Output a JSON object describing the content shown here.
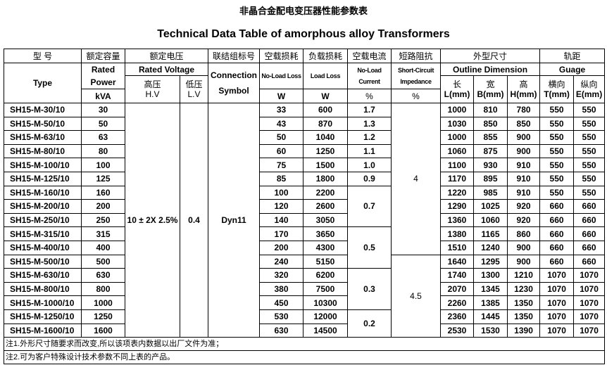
{
  "title_cn": "非晶合金配电变压器性能参数表",
  "title_en": "Technical Data Table of amorphous alloy Transformers",
  "header": {
    "row1": [
      "型 号",
      "额定容量",
      "额定电压",
      "联结组标号",
      "空载损耗",
      "负载损耗",
      "空载电流",
      "短路阻抗",
      "外型尺寸",
      "轨距"
    ],
    "type": "Type",
    "rated_power": "Rated Power",
    "kva": "kVA",
    "rated_voltage": "Rated Voltage",
    "hv_cn": "高压",
    "hv": "H.V",
    "lv_cn": "低压",
    "lv": "L.V",
    "connection_symbol": "Connection Symbol",
    "no_load_loss": "No-Load Loss",
    "load_loss": "Load Loss",
    "no_load_current": "No-Load Current",
    "short_circuit_impedance": "Short-Circuit Impedance",
    "unit_w": "W",
    "unit_pct": "%",
    "outline_dimension": "Outline Dimension",
    "guage": "Guage",
    "dim_cn": [
      "长",
      "宽",
      "高",
      "横向",
      "纵向"
    ],
    "dim_units": [
      "L(mm)",
      "B(mm)",
      "H(mm)",
      "T(mm)",
      "E(mm)"
    ]
  },
  "merged": {
    "hv_value": "10 ± 2X 2.5%",
    "lv_value": "0.4",
    "connection_value": "Dyn11"
  },
  "impedance_groups": [
    {
      "value": "4",
      "span": 11
    },
    {
      "value": "4.5",
      "span": 6
    }
  ],
  "current_groups": [
    {
      "value": "1.7",
      "span": 1
    },
    {
      "value": "1.3",
      "span": 1
    },
    {
      "value": "1.2",
      "span": 1
    },
    {
      "value": "1.1",
      "span": 1
    },
    {
      "value": "1.0",
      "span": 1
    },
    {
      "value": "0.9",
      "span": 1
    },
    {
      "value": "0.7",
      "span": 3
    },
    {
      "value": "0.5",
      "span": 3
    },
    {
      "value": "0.3",
      "span": 3
    },
    {
      "value": "0.2",
      "span": 2
    }
  ],
  "rows": [
    [
      "SH15-M-30/10",
      "30",
      "33",
      "600",
      "1000",
      "810",
      "780",
      "550",
      "550"
    ],
    [
      "SH15-M-50/10",
      "50",
      "43",
      "870",
      "1030",
      "850",
      "850",
      "550",
      "550"
    ],
    [
      "SH15-M-63/10",
      "63",
      "50",
      "1040",
      "1000",
      "855",
      "900",
      "550",
      "550"
    ],
    [
      "SH15-M-80/10",
      "80",
      "60",
      "1250",
      "1060",
      "875",
      "900",
      "550",
      "550"
    ],
    [
      "SH15-M-100/10",
      "100",
      "75",
      "1500",
      "1100",
      "930",
      "910",
      "550",
      "550"
    ],
    [
      "SH15-M-125/10",
      "125",
      "85",
      "1800",
      "1170",
      "895",
      "910",
      "550",
      "550"
    ],
    [
      "SH15-M-160/10",
      "160",
      "100",
      "2200",
      "1220",
      "985",
      "910",
      "550",
      "550"
    ],
    [
      "SH15-M-200/10",
      "200",
      "120",
      "2600",
      "1290",
      "1025",
      "920",
      "660",
      "660"
    ],
    [
      "SH15-M-250/10",
      "250",
      "140",
      "3050",
      "1360",
      "1060",
      "920",
      "660",
      "660"
    ],
    [
      "SH15-M-315/10",
      "315",
      "170",
      "3650",
      "1380",
      "1165",
      "860",
      "660",
      "660"
    ],
    [
      "SH15-M-400/10",
      "400",
      "200",
      "4300",
      "1510",
      "1240",
      "900",
      "660",
      "660"
    ],
    [
      "SH15-M-500/10",
      "500",
      "240",
      "5150",
      "1640",
      "1295",
      "900",
      "660",
      "660"
    ],
    [
      "SH15-M-630/10",
      "630",
      "320",
      "6200",
      "1740",
      "1300",
      "1210",
      "1070",
      "1070"
    ],
    [
      "SH15-M-800/10",
      "800",
      "380",
      "7500",
      "2070",
      "1345",
      "1230",
      "1070",
      "1070"
    ],
    [
      "SH15-M-1000/10",
      "1000",
      "450",
      "10300",
      "2260",
      "1385",
      "1350",
      "1070",
      "1070"
    ],
    [
      "SH15-M-1250/10",
      "1250",
      "530",
      "12000",
      "2360",
      "1445",
      "1350",
      "1070",
      "1070"
    ],
    [
      "SH15-M-1600/10",
      "1600",
      "630",
      "14500",
      "2530",
      "1530",
      "1390",
      "1070",
      "1070"
    ]
  ],
  "notes": [
    "注1.外形尺寸随要求而改变,所以该项表内数据以出厂文件为准；",
    "注2.可为客户特殊设计技术参数不同上表的产品。"
  ]
}
